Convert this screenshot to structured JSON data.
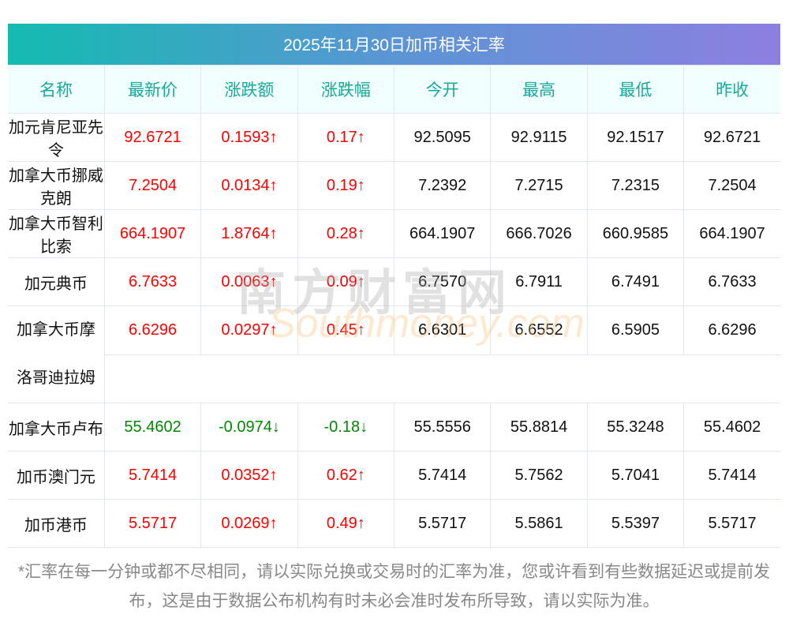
{
  "title": "2025年11月30日加币相关汇率",
  "headers": [
    "名称",
    "最新价",
    "涨跌额",
    "涨跌幅",
    "今开",
    "最高",
    "最低",
    "昨收"
  ],
  "rows": [
    {
      "name": "加元肯尼亚先令",
      "latest": "92.6721",
      "change": "0.1593↑",
      "pct": "0.17↑",
      "open": "92.5095",
      "high": "92.9115",
      "low": "92.1517",
      "prev": "92.6721",
      "dir": "up"
    },
    {
      "name": "加拿大币挪威克朗",
      "latest": "7.2504",
      "change": "0.0134↑",
      "pct": "0.19↑",
      "open": "7.2392",
      "high": "7.2715",
      "low": "7.2315",
      "prev": "7.2504",
      "dir": "up"
    },
    {
      "name": "加拿大币智利比索",
      "latest": "664.1907",
      "change": "1.8764↑",
      "pct": "0.28↑",
      "open": "664.1907",
      "high": "666.7026",
      "low": "660.9585",
      "prev": "664.1907",
      "dir": "up"
    },
    {
      "name": "加元典币",
      "latest": "6.7633",
      "change": "0.0063↑",
      "pct": "0.09↑",
      "open": "6.7570",
      "high": "6.7911",
      "low": "6.7491",
      "prev": "6.7633",
      "dir": "up"
    },
    {
      "name": "加拿大币摩洛哥迪拉姆",
      "latest": "6.6296",
      "change": "0.0297↑",
      "pct": "0.45↑",
      "open": "6.6301",
      "high": "6.6552",
      "low": "6.5905",
      "prev": "6.6296",
      "dir": "up"
    },
    {
      "name": "加拿大币卢布",
      "latest": "55.4602",
      "change": "-0.0974↓",
      "pct": "-0.18↓",
      "open": "55.5556",
      "high": "55.8814",
      "low": "55.3248",
      "prev": "55.4602",
      "dir": "down"
    },
    {
      "name": "加币澳门元",
      "latest": "5.7414",
      "change": "0.0352↑",
      "pct": "0.62↑",
      "open": "5.7414",
      "high": "5.7562",
      "low": "5.7041",
      "prev": "5.7414",
      "dir": "up"
    },
    {
      "name": "加币港币",
      "latest": "5.5717",
      "change": "0.0269↑",
      "pct": "0.49↑",
      "open": "5.5717",
      "high": "5.5861",
      "low": "5.5397",
      "prev": "5.5717",
      "dir": "up"
    }
  ],
  "watermark": {
    "cn": "南方财富网",
    "en": "Southmoney.com"
  },
  "footnote": "*汇率在每一分钟或都不尽相同，请以实际兑换或交易时的汇率为准，您或许看到有些数据延迟或提前发布，这是由于数据公布机构有时未必会准时发布所导致，请以实际为准。"
}
